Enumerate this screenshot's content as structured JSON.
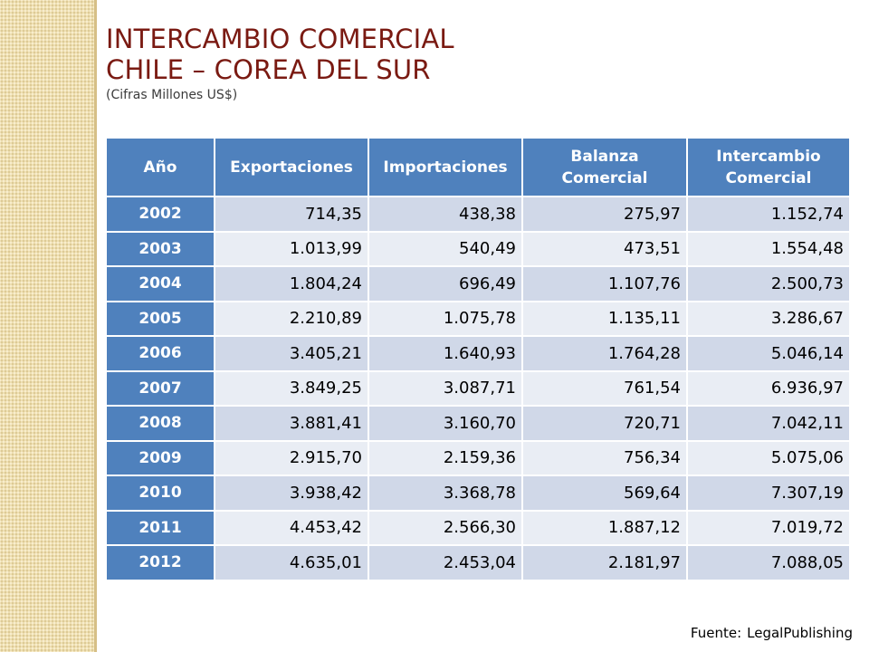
{
  "title": {
    "line1": "INTERCAMBIO COMERCIAL",
    "line2": "CHILE – COREA DEL SUR",
    "subtitle": "(Cifras Millones US$)"
  },
  "table": {
    "headers": [
      "Año",
      "Exportaciones",
      "Importaciones",
      "Balanza Comercial",
      "Intercambio Comercial"
    ],
    "rows": [
      [
        "2002",
        "714,35",
        "438,38",
        "275,97",
        "1.152,74"
      ],
      [
        "2003",
        "1.013,99",
        "540,49",
        "473,51",
        "1.554,48"
      ],
      [
        "2004",
        "1.804,24",
        "696,49",
        "1.107,76",
        "2.500,73"
      ],
      [
        "2005",
        "2.210,89",
        "1.075,78",
        "1.135,11",
        "3.286,67"
      ],
      [
        "2006",
        "3.405,21",
        "1.640,93",
        "1.764,28",
        "5.046,14"
      ],
      [
        "2007",
        "3.849,25",
        "3.087,71",
        "761,54",
        "6.936,97"
      ],
      [
        "2008",
        "3.881,41",
        "3.160,70",
        "720,71",
        "7.042,11"
      ],
      [
        "2009",
        "2.915,70",
        "2.159,36",
        "756,34",
        "5.075,06"
      ],
      [
        "2010",
        "3.938,42",
        "3.368,78",
        "569,64",
        "7.307,19"
      ],
      [
        "2011",
        "4.453,42",
        "2.566,30",
        "1.887,12",
        "7.019,72"
      ],
      [
        "2012",
        "4.635,01",
        "2.453,04",
        "2.181,97",
        "7.088,05"
      ]
    ]
  },
  "source": {
    "label": "Fuente:",
    "value": "LegalPublishing"
  },
  "colors": {
    "header_blue": "#4f81bd",
    "row_dark": "#d0d8e8",
    "row_light": "#e9edf4",
    "title": "#7a1a12"
  }
}
